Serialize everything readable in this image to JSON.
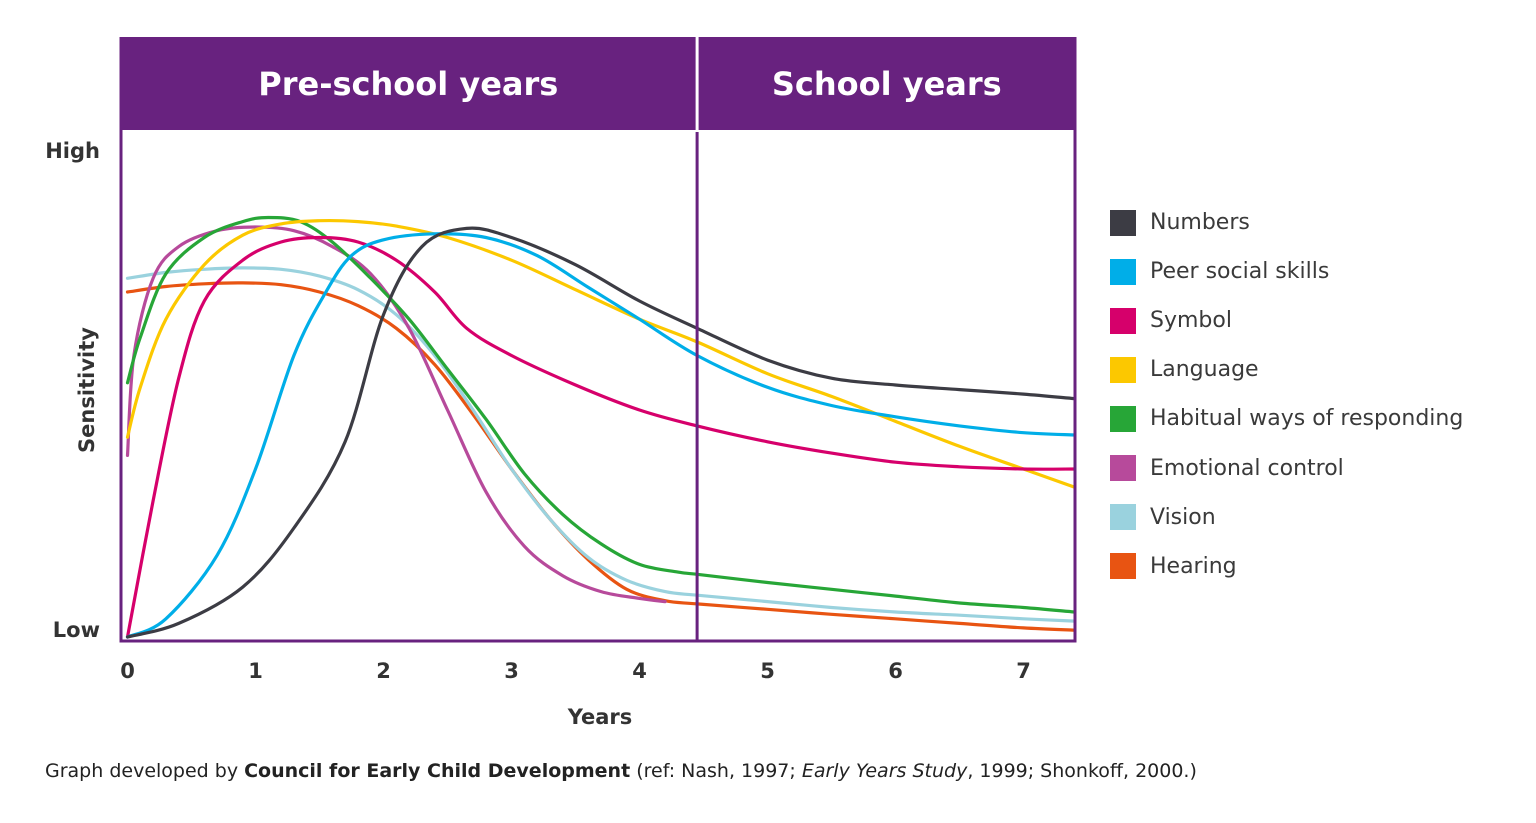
{
  "colors": {
    "band": "#68227f",
    "axis": "#68227f",
    "text": "#333333"
  },
  "bands": [
    {
      "label": "Pre-school years",
      "x_start": 0,
      "x_end": 4.45
    },
    {
      "label": "School years",
      "x_start": 4.45,
      "x_end": 7.4
    }
  ],
  "source": {
    "prefix": "Graph developed by ",
    "org": "Council for Early Child Development",
    "ref_open": " (ref: Nash, 1997; ",
    "study": "Early Years Study",
    "ref_close": ", 1999; Shonkoff, 2000.)"
  },
  "chart_data": {
    "type": "line",
    "title": "",
    "xlabel": "Years",
    "ylabel": "Sensitivity",
    "xlim": [
      -0.05,
      7.4
    ],
    "ylim": [
      0,
      100
    ],
    "x_ticks": [
      0,
      1,
      2,
      3,
      4,
      5,
      6,
      7
    ],
    "y_ticks": [
      {
        "value": 0,
        "label": "Low"
      },
      {
        "value": 100,
        "label": "High"
      }
    ],
    "grid": false,
    "legend_position": "right",
    "series": [
      {
        "name": "Numbers",
        "color": "#3c3c44",
        "x": [
          0,
          0.4,
          0.9,
          1.3,
          1.7,
          2.0,
          2.3,
          2.65,
          3.0,
          3.5,
          4.0,
          4.45,
          5.0,
          5.5,
          6.0,
          6.5,
          7.0,
          7.4
        ],
        "y": [
          0,
          3,
          11,
          24,
          43,
          71,
          86,
          90,
          88,
          82,
          74,
          68,
          61,
          57,
          55.5,
          54.5,
          53.5,
          52.5
        ]
      },
      {
        "name": "Peer social skills",
        "color": "#00aee8",
        "x": [
          0,
          0.3,
          0.7,
          1.0,
          1.3,
          1.55,
          1.75,
          2.0,
          2.4,
          2.8,
          3.2,
          3.6,
          4.0,
          4.45,
          5.0,
          5.5,
          6.0,
          6.5,
          7.0,
          7.4
        ],
        "y": [
          0,
          4,
          18,
          37,
          62,
          76,
          84,
          87.5,
          88.8,
          88,
          84,
          77,
          70,
          62,
          55,
          51,
          48.5,
          46.5,
          45,
          44.5
        ]
      },
      {
        "name": "Symbol",
        "color": "#d6006b",
        "x": [
          0,
          0.2,
          0.4,
          0.6,
          0.9,
          1.2,
          1.5,
          1.8,
          2.1,
          2.4,
          2.65,
          3.0,
          3.5,
          4.0,
          4.45,
          5.0,
          5.5,
          6.0,
          6.5,
          7.0,
          7.4
        ],
        "y": [
          0,
          30,
          57,
          74,
          83,
          87,
          88,
          87,
          83,
          76,
          68,
          62,
          55.5,
          50,
          46.5,
          43,
          40.5,
          38.5,
          37.5,
          37,
          37
        ]
      },
      {
        "name": "Language",
        "color": "#fcc800",
        "x": [
          0,
          0.1,
          0.3,
          0.6,
          0.9,
          1.2,
          1.5,
          1.8,
          2.1,
          2.5,
          3.0,
          3.5,
          4.0,
          4.45,
          5.0,
          5.5,
          6.0,
          6.5,
          7.0,
          7.4
        ],
        "y": [
          44,
          55,
          70,
          82,
          88.5,
          91,
          91.7,
          91.5,
          90.5,
          88,
          83,
          76.5,
          70,
          65,
          58,
          53,
          47.5,
          42,
          37,
          33
        ]
      },
      {
        "name": "Habitual ways of responding",
        "color": "#27a637",
        "x": [
          0,
          0.1,
          0.3,
          0.6,
          0.9,
          1.1,
          1.35,
          1.6,
          1.9,
          2.2,
          2.5,
          2.8,
          3.1,
          3.4,
          3.7,
          4.0,
          4.3,
          4.45,
          5.0,
          5.5,
          6.0,
          6.5,
          7.0,
          7.4
        ],
        "y": [
          56,
          66,
          80,
          88,
          91.5,
          92.4,
          91.5,
          87,
          79,
          70,
          59,
          48,
          36,
          27,
          20.5,
          16,
          14.3,
          13.8,
          12,
          10.5,
          9,
          7.5,
          6.5,
          5.5
        ]
      },
      {
        "name": "Emotional control",
        "color": "#b74a9b",
        "x": [
          0,
          0.05,
          0.2,
          0.4,
          0.7,
          1.0,
          1.3,
          1.6,
          1.9,
          2.2,
          2.5,
          2.8,
          3.1,
          3.4,
          3.7,
          4.0,
          4.2
        ],
        "y": [
          40,
          62,
          79,
          86,
          89.5,
          90.3,
          89.5,
          86,
          80,
          68,
          50,
          32,
          20,
          13.5,
          10,
          8.5,
          7.8
        ]
      },
      {
        "name": "Vision",
        "color": "#9ad2de",
        "x": [
          0,
          0.3,
          0.6,
          0.9,
          1.2,
          1.5,
          1.8,
          2.1,
          2.4,
          2.7,
          3.0,
          3.3,
          3.6,
          3.9,
          4.2,
          4.45,
          5.0,
          5.5,
          6.0,
          6.5,
          7.0,
          7.4
        ],
        "y": [
          79,
          80.3,
          81,
          81.3,
          81,
          79.5,
          76.5,
          71,
          62,
          50,
          37,
          26,
          17.5,
          12.5,
          10,
          9.2,
          7.8,
          6.5,
          5.5,
          4.8,
          4,
          3.5
        ]
      },
      {
        "name": "Hearing",
        "color": "#e85412",
        "x": [
          0,
          0.3,
          0.6,
          0.9,
          1.2,
          1.5,
          1.8,
          2.1,
          2.4,
          2.7,
          3.0,
          3.3,
          3.6,
          3.9,
          4.2,
          4.45,
          5.0,
          5.5,
          6.0,
          6.5,
          7.0,
          7.4
        ],
        "y": [
          76,
          77.2,
          77.8,
          78,
          77.6,
          76,
          73,
          68,
          60,
          49,
          37,
          26,
          17,
          10.5,
          8,
          7.3,
          6.1,
          5,
          4,
          3,
          2,
          1.5
        ]
      }
    ]
  }
}
